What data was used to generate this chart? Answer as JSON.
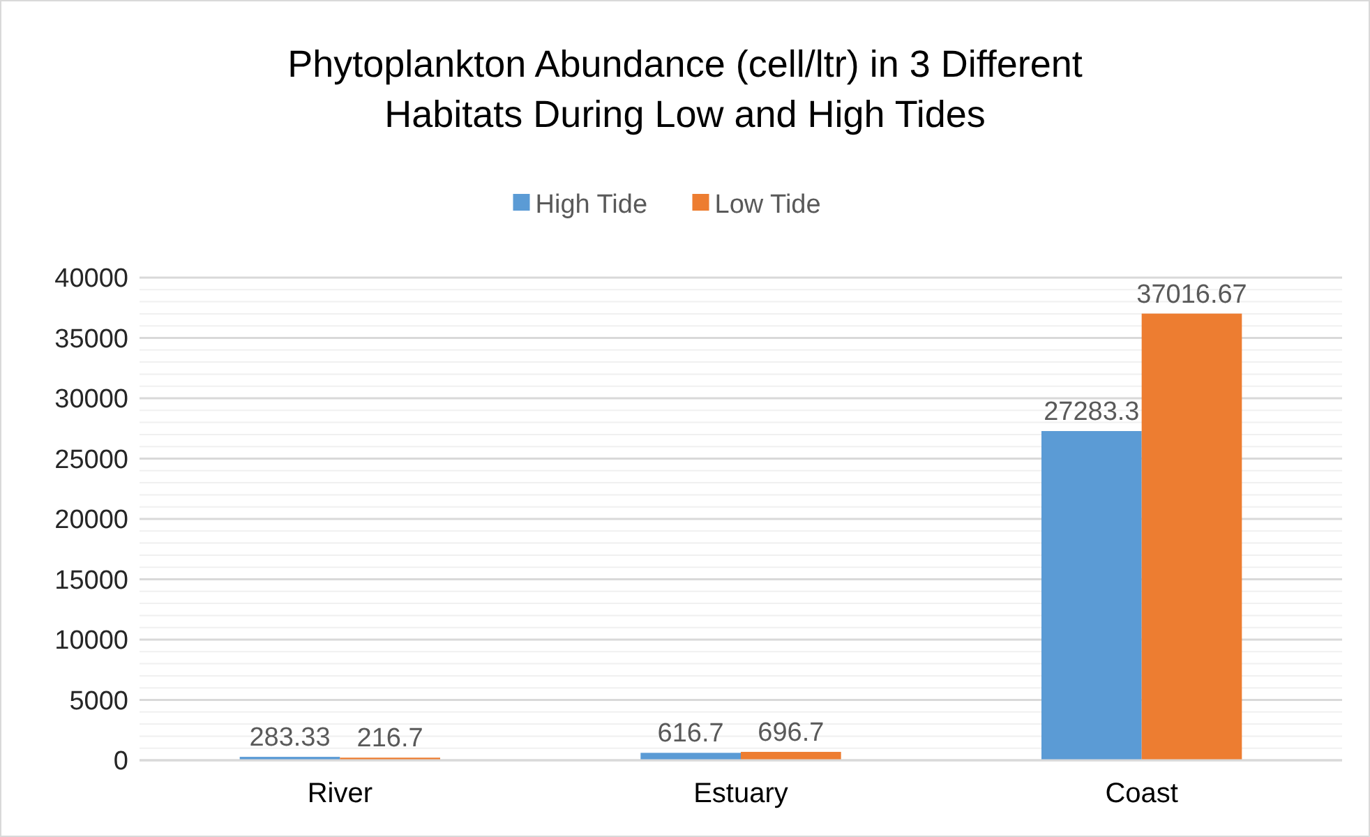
{
  "chart_data": {
    "type": "bar",
    "title": "Phytoplankton Abundance (cell/ltr) in 3 Different Habitats During Low and High Tides",
    "categories": [
      "River",
      "Estuary",
      "Coast"
    ],
    "series": [
      {
        "name": "High Tide",
        "color": "#5b9bd5",
        "values": [
          283.33,
          616.7,
          27283.3
        ]
      },
      {
        "name": "Low Tide",
        "color": "#ed7d31",
        "values": [
          216.7,
          696.7,
          37016.67
        ]
      }
    ],
    "ylim": [
      0,
      40000
    ],
    "yticks": [
      0,
      {
        "value": 1000,
        "label": null
      },
      {
        "value": 2000,
        "label": null
      },
      {
        "value": 3000,
        "label": null
      },
      {
        "value": 4000,
        "label": null
      },
      5000,
      {
        "value": 6000,
        "label": null
      },
      {
        "value": 7000,
        "label": null
      },
      {
        "value": 8000,
        "label": null
      },
      {
        "value": 9000,
        "label": null
      },
      10000,
      {
        "value": 11000,
        "label": null
      },
      {
        "value": 12000,
        "label": null
      },
      {
        "value": 13000,
        "label": null
      },
      {
        "value": 14000,
        "label": null
      },
      15000,
      {
        "value": 16000,
        "label": null
      },
      {
        "value": 17000,
        "label": null
      },
      {
        "value": 18000,
        "label": null
      },
      {
        "value": 19000,
        "label": null
      },
      20000,
      {
        "value": 21000,
        "label": null
      },
      {
        "value": 22000,
        "label": null
      },
      {
        "value": 23000,
        "label": null
      },
      {
        "value": 24000,
        "label": null
      },
      25000,
      {
        "value": 26000,
        "label": null
      },
      {
        "value": 27000,
        "label": null
      },
      {
        "value": 28000,
        "label": null
      },
      {
        "value": 29000,
        "label": null
      },
      30000,
      {
        "value": 31000,
        "label": null
      },
      {
        "value": 32000,
        "label": null
      },
      {
        "value": 33000,
        "label": null
      },
      {
        "value": 34000,
        "label": null
      },
      35000,
      {
        "value": 36000,
        "label": null
      },
      {
        "value": 37000,
        "label": null
      },
      {
        "value": 38000,
        "label": null
      },
      {
        "value": 39000,
        "label": null
      },
      40000
    ],
    "grid": "y",
    "legend": "top",
    "data_labels": true
  }
}
